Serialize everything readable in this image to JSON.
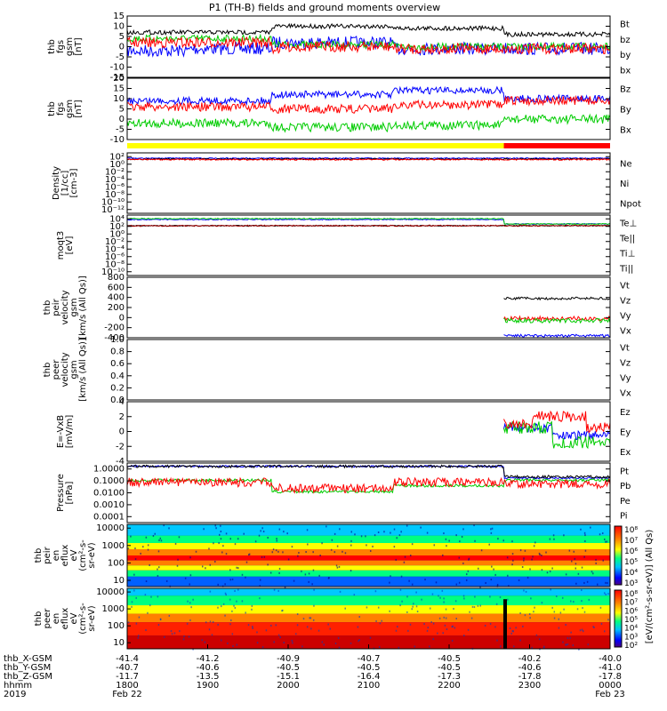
{
  "title": "P1 (TH-B) fields and ground moments overview",
  "colors": {
    "black": "#000000",
    "red": "#ff0000",
    "green": "#00cc00",
    "blue": "#0000ff",
    "yellow": "#ffff00",
    "darkred": "#a00000"
  },
  "chart_data": [
    {
      "type": "line",
      "ylabel": [
        "thb",
        "fgs",
        "gsm",
        "[nT]"
      ],
      "ylim": [
        -15,
        15
      ],
      "ticks": [
        -15,
        -10,
        -5,
        0,
        5,
        10,
        15
      ],
      "tick_labels": [
        "-15",
        "-10",
        "-5",
        "0",
        "5",
        "10",
        "15"
      ],
      "legend": [
        {
          "name": "Bt",
          "color": "#000000"
        },
        {
          "name": "bz",
          "color": "#ff0000"
        },
        {
          "name": "by",
          "color": "#00cc00"
        },
        {
          "name": "bx",
          "color": "#0000ff"
        }
      ]
    },
    {
      "type": "line",
      "ylabel": [
        "thb",
        "fgs",
        "gsm",
        "[nT]"
      ],
      "ylim": [
        -10,
        20
      ],
      "ticks": [
        -10,
        -5,
        0,
        5,
        10,
        15,
        20
      ],
      "tick_labels": [
        "-10",
        "-5",
        "0",
        "5",
        "10",
        "15",
        "20"
      ],
      "legend": [
        {
          "name": "Bz",
          "color": "#ff0000"
        },
        {
          "name": "By",
          "color": "#00cc00"
        },
        {
          "name": "Bx",
          "color": "#0000ff"
        }
      ]
    },
    {
      "type": "bar",
      "ylabel": [],
      "segments": [
        {
          "from": "1800",
          "to": "2250",
          "color": "#ffff00"
        },
        {
          "from": "2250",
          "to": "0000",
          "color": "#ff0000"
        }
      ]
    },
    {
      "type": "line",
      "ylabel": [
        "Density",
        "[1/cc]",
        "[cm-3]"
      ],
      "log": true,
      "ticks": [
        "10²",
        "10⁰",
        "10⁻²",
        "10⁻⁴",
        "10⁻⁶",
        "10⁻⁸",
        "10⁻¹⁰",
        "10⁻¹²"
      ],
      "legend": [
        {
          "name": "Ne",
          "color": "#ff0000"
        },
        {
          "name": "Ni",
          "color": "#000000"
        },
        {
          "name": "Npot",
          "color": "#0000ff"
        }
      ]
    },
    {
      "type": "line",
      "ylabel": [
        "moqt3",
        "[eV]"
      ],
      "log": true,
      "ticks": [
        "10⁴",
        "10²",
        "10⁰",
        "10⁻²",
        "10⁻⁴",
        "10⁻⁶",
        "10⁻⁸",
        "10⁻¹⁰"
      ],
      "legend": [
        {
          "name": "Te⊥",
          "color": "#ff0000"
        },
        {
          "name": "Te||",
          "color": "#000000"
        },
        {
          "name": "Ti⊥",
          "color": "#cc8800"
        },
        {
          "name": "Ti||",
          "color": "#00cc00"
        }
      ]
    },
    {
      "type": "line",
      "ylabel": [
        "thb",
        "peir",
        "velocity",
        "gsm",
        "[km/s (All Qs)]"
      ],
      "ylim": [
        -400,
        800
      ],
      "ticks": [
        -400,
        -200,
        0,
        200,
        400,
        600,
        800
      ],
      "tick_labels": [
        "-400",
        "-200",
        "0",
        "200",
        "400",
        "600",
        "800"
      ],
      "legend": [
        {
          "name": "Vt",
          "color": "#000000"
        },
        {
          "name": "Vz",
          "color": "#ff0000"
        },
        {
          "name": "Vy",
          "color": "#00cc00"
        },
        {
          "name": "Vx",
          "color": "#0000ff"
        }
      ]
    },
    {
      "type": "line",
      "ylabel": [
        "thb",
        "peer",
        "velocity",
        "gsm",
        "[km/s (All Qs)]"
      ],
      "ylim": [
        0,
        1
      ],
      "ticks": [
        0,
        0.2,
        0.4,
        0.6,
        0.8,
        1.0
      ],
      "tick_labels": [
        "0.0",
        "0.2",
        "0.4",
        "0.6",
        "0.8",
        "1.0"
      ],
      "legend": [
        {
          "name": "Vt",
          "color": "#000000"
        },
        {
          "name": "Vz",
          "color": "#ff0000"
        },
        {
          "name": "Vy",
          "color": "#00cc00"
        },
        {
          "name": "Vx",
          "color": "#0000ff"
        }
      ]
    },
    {
      "type": "line",
      "ylabel": [
        "E=-VxB",
        "[mV/m]"
      ],
      "ylim": [
        -4,
        4
      ],
      "ticks": [
        -4,
        -2,
        0,
        2,
        4
      ],
      "tick_labels": [
        "-4",
        "-2",
        "0",
        "2",
        "4"
      ],
      "legend": [
        {
          "name": "Ez",
          "color": "#ff0000"
        },
        {
          "name": "Ey",
          "color": "#00cc00"
        },
        {
          "name": "Ex",
          "color": "#0000ff"
        }
      ]
    },
    {
      "type": "line",
      "ylabel": [
        "Pressure",
        "[nPa]"
      ],
      "log": true,
      "ticks": [
        1.0,
        0.1,
        0.01,
        0.001,
        0.0001
      ],
      "tick_labels": [
        "1.0000",
        "0.1000",
        "0.0100",
        "0.0010",
        "0.0001"
      ],
      "legend": [
        {
          "name": "Pt",
          "color": "#000000"
        },
        {
          "name": "Pb",
          "color": "#ff0000"
        },
        {
          "name": "Pe",
          "color": "#00cc00"
        },
        {
          "name": "Pi",
          "color": "#0000ff"
        }
      ]
    },
    {
      "type": "heatmap",
      "ylabel": [
        "thb",
        "peir",
        "en",
        "eflux",
        "eV",
        "(cm²-s-",
        "sr-eV)"
      ],
      "ytick_labels": [
        "10000",
        "1000",
        "100",
        "10"
      ],
      "colorbar": [
        "10⁸",
        "10⁷",
        "10⁶",
        "10⁵",
        "10⁴",
        "10³"
      ],
      "colorbar_label": "[eV/(cm²-s-sr-eV)] (All Qs)"
    },
    {
      "type": "heatmap",
      "ylabel": [
        "thb",
        "peer",
        "en",
        "eflux",
        "eV",
        "(cm²-s-",
        "sr-eV)"
      ],
      "ytick_labels": [
        "10000",
        "1000",
        "100",
        "10"
      ],
      "colorbar": [
        "10⁸",
        "10⁷",
        "10⁶",
        "10⁵",
        "10⁴",
        "10³",
        "10²"
      ],
      "colorbar_label": "[eV/(cm²-s-sr-eV)] (All Qs)"
    }
  ],
  "time_axis": {
    "rows": [
      {
        "label": "thb_X-GSM",
        "values": [
          "-41.4",
          "-41.2",
          "-40.9",
          "-40.7",
          "-40.5",
          "-40.2",
          "-40.0"
        ]
      },
      {
        "label": "thb_Y-GSM",
        "values": [
          "-40.7",
          "-40.6",
          "-40.5",
          "-40.5",
          "-40.5",
          "-40.6",
          "-41.0"
        ]
      },
      {
        "label": "thb_Z-GSM",
        "values": [
          "-11.7",
          "-13.5",
          "-15.1",
          "-16.4",
          "-17.3",
          "-17.8",
          "-17.8"
        ]
      },
      {
        "label": "hhmm",
        "values": [
          "1800",
          "1900",
          "2000",
          "2100",
          "2200",
          "2300",
          "0000"
        ]
      }
    ],
    "year": "2019",
    "date_start": "Feb 22",
    "date_end": "Feb 23"
  }
}
